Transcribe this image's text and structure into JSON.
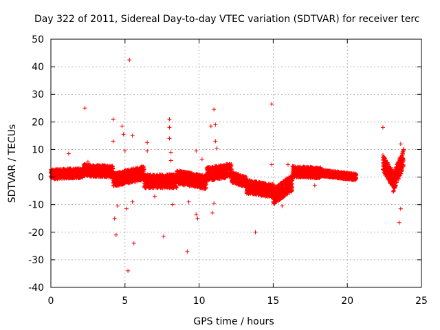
{
  "chart_data": {
    "type": "scatter",
    "title": "Day 322 of 2011, Sidereal Day-to-day VTEC variation (SDTVAR) for receiver terc",
    "xlabel": "GPS time / hours",
    "ylabel": "SDTVAR / TECUs",
    "xlim": [
      0,
      25
    ],
    "ylim": [
      -40,
      50
    ],
    "x_ticks": [
      0,
      5,
      10,
      15,
      20,
      25
    ],
    "y_ticks": [
      -40,
      -30,
      -20,
      -10,
      0,
      10,
      20,
      30,
      40,
      50
    ],
    "x_tick_labels": [
      "0",
      "5",
      "10",
      "15",
      "20",
      "25"
    ],
    "y_tick_labels": [
      "-40",
      "-30",
      "-20",
      "-10",
      "0",
      "10",
      "20",
      "30",
      "40",
      "50"
    ],
    "grid": true,
    "marker": "+",
    "series_color": "#ff0000",
    "dense_segments": [
      {
        "name": "band-0-2",
        "x_start": 0.0,
        "x_end": 2.2,
        "y_center": [
          1.0,
          1.5
        ],
        "half_width": 1.8
      },
      {
        "name": "band-2-4",
        "x_start": 2.2,
        "x_end": 4.2,
        "y_center": [
          2.5,
          2.0
        ],
        "half_width": 2.2
      },
      {
        "name": "band-4-6",
        "x_start": 4.2,
        "x_end": 6.3,
        "y_center": [
          -1.0,
          1.5
        ],
        "half_width": 2.5
      },
      {
        "name": "band-6-8",
        "x_start": 6.3,
        "x_end": 8.5,
        "y_center": [
          -1.5,
          -1.5
        ],
        "half_width": 2.5
      },
      {
        "name": "band-8-10",
        "x_start": 8.5,
        "x_end": 10.5,
        "y_center": [
          0.0,
          -2.0
        ],
        "half_width": 2.5
      },
      {
        "name": "band-10-12",
        "x_start": 10.5,
        "x_end": 12.2,
        "y_center": [
          1.0,
          2.5
        ],
        "half_width": 2.5
      },
      {
        "name": "band-12-13",
        "x_start": 12.2,
        "x_end": 13.2,
        "y_center": [
          0.0,
          -2.0
        ],
        "half_width": 2.0
      },
      {
        "name": "band-13-15",
        "x_start": 13.2,
        "x_end": 15.0,
        "y_center": [
          -3.5,
          -5.0
        ],
        "half_width": 2.5
      },
      {
        "name": "band-15-16",
        "x_start": 15.0,
        "x_end": 16.3,
        "y_center": [
          -7.0,
          -2.0
        ],
        "half_width": 3.0
      },
      {
        "name": "band-16-18",
        "x_start": 16.3,
        "x_end": 18.2,
        "y_center": [
          2.0,
          1.5
        ],
        "half_width": 2.0
      },
      {
        "name": "band-18-20",
        "x_start": 18.2,
        "x_end": 20.6,
        "y_center": [
          1.5,
          0.0
        ],
        "half_width": 1.2
      },
      {
        "name": "band-22-23",
        "x_start": 22.4,
        "x_end": 23.1,
        "y_center": [
          5.0,
          -1.0
        ],
        "half_width": 3.0
      },
      {
        "name": "band-23-24",
        "x_start": 23.1,
        "x_end": 23.8,
        "y_center": [
          -2.0,
          7.0
        ],
        "half_width": 3.5
      }
    ],
    "outliers": [
      [
        1.2,
        8.5
      ],
      [
        2.3,
        25.0
      ],
      [
        2.5,
        5.5
      ],
      [
        4.2,
        21.0
      ],
      [
        4.2,
        13.0
      ],
      [
        4.3,
        -15.0
      ],
      [
        4.4,
        -21.0
      ],
      [
        4.5,
        -10.5
      ],
      [
        4.8,
        18.5
      ],
      [
        4.9,
        15.5
      ],
      [
        5.0,
        9.5
      ],
      [
        5.1,
        -11.5
      ],
      [
        5.3,
        42.5
      ],
      [
        5.2,
        -34.0
      ],
      [
        5.5,
        15.0
      ],
      [
        5.6,
        -24.0
      ],
      [
        5.5,
        -9.0
      ],
      [
        6.5,
        12.5
      ],
      [
        6.5,
        9.5
      ],
      [
        7.0,
        -7.0
      ],
      [
        7.6,
        -21.5
      ],
      [
        8.0,
        21.0
      ],
      [
        8.0,
        18.0
      ],
      [
        8.0,
        14.0
      ],
      [
        8.1,
        9.0
      ],
      [
        8.1,
        6.0
      ],
      [
        8.2,
        -10.0
      ],
      [
        9.2,
        -27.0
      ],
      [
        9.3,
        -9.0
      ],
      [
        9.8,
        9.5
      ],
      [
        9.8,
        -13.5
      ],
      [
        9.9,
        -15.0
      ],
      [
        10.2,
        6.5
      ],
      [
        10.8,
        18.5
      ],
      [
        11.0,
        24.5
      ],
      [
        11.1,
        19.0
      ],
      [
        11.1,
        13.0
      ],
      [
        11.0,
        -9.5
      ],
      [
        10.9,
        -13.0
      ],
      [
        11.2,
        10.5
      ],
      [
        13.8,
        -20.0
      ],
      [
        14.9,
        26.5
      ],
      [
        14.9,
        4.5
      ],
      [
        15.6,
        -10.5
      ],
      [
        16.0,
        4.5
      ],
      [
        17.8,
        -3.0
      ],
      [
        22.4,
        18.0
      ],
      [
        22.4,
        8.0
      ],
      [
        23.5,
        -16.5
      ],
      [
        23.6,
        12.0
      ],
      [
        23.6,
        -11.5
      ]
    ]
  }
}
